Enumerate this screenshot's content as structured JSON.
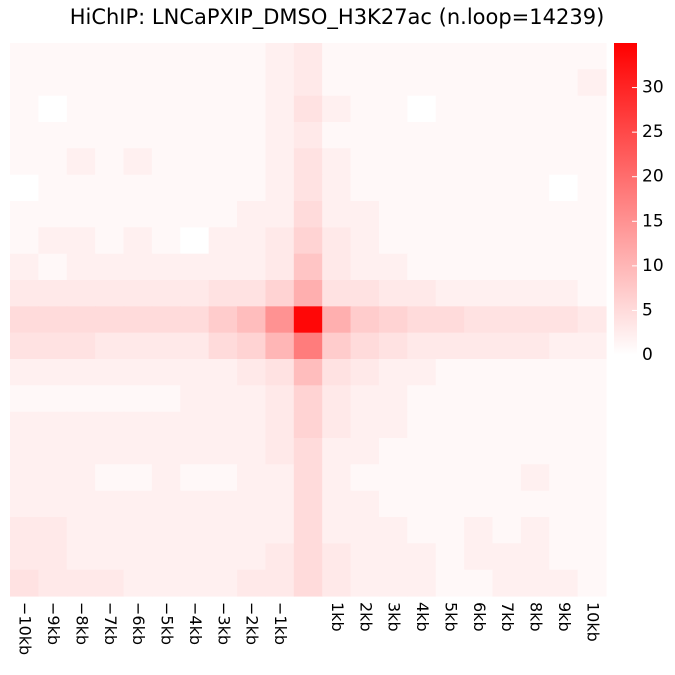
{
  "chart_data": {
    "type": "heatmap",
    "title": "HiChIP: LNCaPXIP_DMSO_H3K27ac (n.loop=14239)",
    "x_tick_labels": [
      "−10kb",
      "−9kb",
      "−8kb",
      "−7kb",
      "−6kb",
      "−5kb",
      "−4kb",
      "−3kb",
      "−2kb",
      "−1kb",
      "",
      "1kb",
      "2kb",
      "3kb",
      "4kb",
      "5kb",
      "6kb",
      "7kb",
      "8kb",
      "9kb",
      "10kb"
    ],
    "colorbar": {
      "range": [
        0,
        35
      ],
      "ticks": [
        "0",
        "5",
        "10",
        "15",
        "20",
        "25",
        "30"
      ],
      "low_color": "#ffffff",
      "high_color": "#ff0000"
    },
    "matrix": [
      [
        1,
        1,
        1,
        1,
        1,
        1,
        1,
        1,
        1,
        2,
        3,
        1,
        1,
        1,
        1,
        1,
        1,
        1,
        1,
        1,
        1
      ],
      [
        1,
        1,
        1,
        1,
        1,
        1,
        1,
        1,
        1,
        2,
        3,
        1,
        1,
        1,
        1,
        1,
        1,
        1,
        1,
        1,
        2
      ],
      [
        1,
        0,
        1,
        1,
        1,
        1,
        1,
        1,
        1,
        2,
        4,
        2,
        1,
        1,
        0,
        1,
        1,
        1,
        1,
        1,
        1
      ],
      [
        1,
        1,
        1,
        1,
        1,
        1,
        1,
        1,
        1,
        2,
        3,
        1,
        1,
        1,
        1,
        1,
        1,
        1,
        1,
        1,
        1
      ],
      [
        1,
        1,
        2,
        1,
        2,
        1,
        1,
        1,
        1,
        2,
        4,
        2,
        1,
        1,
        1,
        1,
        1,
        1,
        1,
        1,
        1
      ],
      [
        0,
        1,
        1,
        1,
        1,
        1,
        1,
        1,
        1,
        2,
        4,
        2,
        1,
        1,
        1,
        1,
        1,
        1,
        1,
        0,
        1
      ],
      [
        1,
        1,
        1,
        1,
        1,
        1,
        1,
        1,
        2,
        2,
        5,
        2,
        2,
        1,
        1,
        1,
        1,
        1,
        1,
        1,
        1
      ],
      [
        1,
        2,
        2,
        1,
        2,
        1,
        0,
        2,
        2,
        3,
        6,
        3,
        2,
        1,
        1,
        1,
        1,
        1,
        1,
        1,
        1
      ],
      [
        2,
        1,
        2,
        2,
        2,
        2,
        2,
        2,
        2,
        3,
        8,
        3,
        2,
        2,
        1,
        1,
        1,
        1,
        1,
        1,
        1
      ],
      [
        3,
        3,
        3,
        3,
        3,
        3,
        3,
        4,
        4,
        6,
        11,
        4,
        4,
        3,
        3,
        2,
        2,
        2,
        2,
        2,
        1
      ],
      [
        5,
        5,
        5,
        5,
        5,
        5,
        5,
        7,
        9,
        15,
        34,
        11,
        7,
        6,
        5,
        5,
        4,
        4,
        4,
        4,
        3
      ],
      [
        4,
        4,
        4,
        3,
        3,
        3,
        3,
        5,
        6,
        10,
        18,
        7,
        5,
        4,
        3,
        3,
        3,
        3,
        3,
        2,
        2
      ],
      [
        2,
        2,
        2,
        2,
        2,
        2,
        2,
        2,
        3,
        4,
        9,
        4,
        3,
        2,
        2,
        1,
        1,
        1,
        1,
        1,
        1
      ],
      [
        1,
        1,
        1,
        1,
        1,
        1,
        2,
        2,
        2,
        3,
        6,
        3,
        2,
        2,
        1,
        1,
        1,
        1,
        1,
        1,
        1
      ],
      [
        2,
        2,
        2,
        2,
        2,
        2,
        2,
        2,
        2,
        3,
        6,
        3,
        2,
        2,
        1,
        1,
        1,
        1,
        1,
        1,
        1
      ],
      [
        2,
        2,
        2,
        2,
        2,
        2,
        2,
        2,
        2,
        3,
        5,
        2,
        2,
        1,
        1,
        1,
        1,
        1,
        1,
        1,
        1
      ],
      [
        2,
        2,
        2,
        1,
        1,
        2,
        1,
        1,
        2,
        2,
        5,
        2,
        1,
        1,
        1,
        1,
        1,
        1,
        2,
        1,
        1
      ],
      [
        2,
        2,
        2,
        2,
        2,
        2,
        2,
        2,
        2,
        2,
        5,
        2,
        2,
        1,
        1,
        1,
        1,
        1,
        1,
        1,
        1
      ],
      [
        3,
        3,
        2,
        2,
        2,
        2,
        2,
        2,
        2,
        2,
        5,
        2,
        2,
        2,
        1,
        1,
        2,
        1,
        2,
        1,
        1
      ],
      [
        3,
        3,
        2,
        2,
        2,
        2,
        2,
        2,
        2,
        3,
        5,
        3,
        2,
        2,
        2,
        1,
        2,
        2,
        2,
        1,
        1
      ],
      [
        4,
        3,
        3,
        3,
        2,
        2,
        2,
        2,
        3,
        3,
        5,
        3,
        2,
        2,
        2,
        1,
        1,
        2,
        2,
        2,
        1
      ]
    ]
  }
}
